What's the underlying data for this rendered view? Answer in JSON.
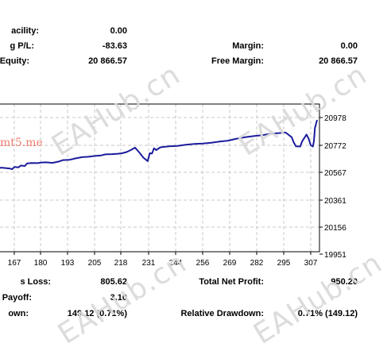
{
  "top_stats": [
    {
      "label": "acility:",
      "value": "0.00"
    },
    {
      "label": "g P/L:",
      "value": "-83.63"
    },
    {
      "label": "Equity:",
      "value": "20 866.57"
    }
  ],
  "right_stats": [
    {
      "label": "Margin:",
      "value": "0.00"
    },
    {
      "label": "Free Margin:",
      "value": "20 866.57"
    }
  ],
  "bottom_stats_left": [
    {
      "label": "s Loss:",
      "value": "805.62"
    },
    {
      "label": "Payoff:",
      "value": "3.10"
    },
    {
      "label": "own:",
      "value": "149.12 (0.71%)"
    }
  ],
  "bottom_stats_right": [
    {
      "label": "Total Net Profit:",
      "value": "950.20"
    },
    {
      "label": "Relative Drawdown:",
      "value": "0.71% (149.12)"
    }
  ],
  "watermark_text": "EAHub.cn",
  "site_text": "mt5.me",
  "colors": {
    "line": "#1c1c9c",
    "grid": "#c8c8c8",
    "watermark": "#d9d9d9",
    "site": "#f08070"
  },
  "chart_data": {
    "type": "line",
    "x_ticks": [
      "167",
      "180",
      "193",
      "205",
      "218",
      "231",
      "244",
      "256",
      "269",
      "282",
      "295",
      "307"
    ],
    "y_ticks": [
      "20978",
      "20772",
      "20567",
      "20361",
      "20156",
      "19951"
    ],
    "series": [
      {
        "x": [
          155,
          158,
          161,
          165,
          166,
          167,
          169,
          170,
          172,
          173,
          175,
          178,
          180,
          182,
          185,
          188,
          190,
          193,
          196,
          199,
          202,
          205,
          208,
          210,
          213,
          216,
          218,
          220,
          222,
          224,
          226,
          228,
          230,
          231,
          232,
          233,
          234,
          236,
          240,
          244,
          248,
          252,
          256,
          260,
          264,
          268,
          272,
          276,
          280,
          284,
          288,
          292,
          295,
          296,
          298,
          299,
          300,
          302,
          303,
          305,
          306,
          307,
          308,
          308.5,
          309,
          310
        ],
        "y": [
          20594,
          20596,
          20601,
          20594,
          20589,
          20606,
          20603,
          20617,
          20614,
          20632,
          20636,
          20635,
          20640,
          20641,
          20637,
          20647,
          20658,
          20660,
          20671,
          20680,
          20683,
          20689,
          20693,
          20701,
          20703,
          20706,
          20710,
          20718,
          20733,
          20752,
          20716,
          20676,
          20651,
          20710,
          20707,
          20747,
          20733,
          20754,
          20762,
          20765,
          20774,
          20779,
          20782,
          20789,
          20797,
          20804,
          20819,
          20830,
          20838,
          20845,
          20856,
          20861,
          20866,
          20855,
          20830,
          20790,
          20762,
          20760,
          20800,
          20850,
          20820,
          20770,
          20760,
          20800,
          20900,
          20960
        ]
      }
    ],
    "xlim": [
      155,
      312
    ],
    "ylim": [
      19951,
      20990
    ],
    "grid": true
  }
}
